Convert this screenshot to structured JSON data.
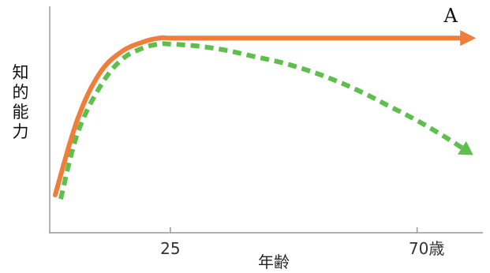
{
  "chart_data": {
    "type": "line",
    "xlabel": "年齢",
    "ylabel_chars": [
      "知",
      "的",
      "能",
      "力"
    ],
    "x_ticks": [
      "25",
      "70歳"
    ],
    "x_tick_values": [
      25,
      70
    ],
    "xlim": [
      3,
      82
    ],
    "ylim": [
      0,
      100
    ],
    "series": [
      {
        "name": "A",
        "style": "solid",
        "color": "#ef7e3b",
        "arrow": "arrow",
        "x": [
          4,
          8,
          12,
          16,
          20,
          23,
          25,
          30,
          40,
          50,
          60,
          70,
          79
        ],
        "y": [
          18,
          55,
          78,
          89,
          94,
          96,
          96,
          96,
          96,
          96,
          96,
          96,
          96
        ]
      },
      {
        "name": "",
        "style": "dashed",
        "color": "#5fbf4c",
        "arrow": "triangle",
        "x": [
          5,
          8,
          12,
          16,
          20,
          23,
          25,
          30,
          35,
          40,
          45,
          50,
          55,
          60,
          65,
          70,
          75,
          79
        ],
        "y": [
          16,
          48,
          71,
          85,
          91,
          93,
          93,
          92,
          90,
          87,
          84,
          80,
          75,
          69,
          62,
          55,
          47,
          40
        ]
      }
    ]
  }
}
